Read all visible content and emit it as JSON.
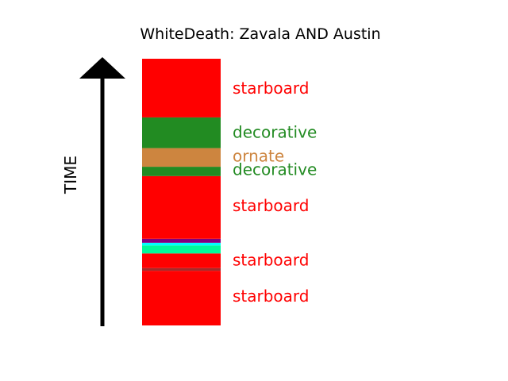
{
  "chart_data": {
    "type": "bar",
    "title": "WhiteDeath: Zavala AND Austin",
    "ylabel": "TIME",
    "ylim": [
      0,
      100
    ],
    "segments": [
      {
        "start": 0,
        "end": 20.5,
        "color": "#ff0000"
      },
      {
        "start": 20.5,
        "end": 21.5,
        "color": "#a52a2a"
      },
      {
        "start": 21.5,
        "end": 27,
        "color": "#ff0000"
      },
      {
        "start": 27,
        "end": 30,
        "color": "#00fa9a"
      },
      {
        "start": 30,
        "end": 31,
        "color": "#00ffff"
      },
      {
        "start": 31,
        "end": 32.5,
        "color": "#800080"
      },
      {
        "start": 32.5,
        "end": 56,
        "color": "#ff0000"
      },
      {
        "start": 56,
        "end": 59.5,
        "color": "#228b22"
      },
      {
        "start": 59.5,
        "end": 66.5,
        "color": "#cd853f"
      },
      {
        "start": 66.5,
        "end": 78,
        "color": "#228b22"
      },
      {
        "start": 78,
        "end": 100,
        "color": "#ff0000"
      }
    ],
    "labels": [
      {
        "text": "starboard",
        "y": 11,
        "color": "#ff0000"
      },
      {
        "text": "starboard",
        "y": 24.5,
        "color": "#ff0000"
      },
      {
        "text": "starboard",
        "y": 45,
        "color": "#ff0000"
      },
      {
        "text": "decorative",
        "y": 58.5,
        "color": "#228b22"
      },
      {
        "text": "ornate",
        "y": 63.5,
        "color": "#cd853f"
      },
      {
        "text": "decorative",
        "y": 72.5,
        "color": "#228b22"
      },
      {
        "text": "starboard",
        "y": 89,
        "color": "#ff0000"
      }
    ]
  }
}
